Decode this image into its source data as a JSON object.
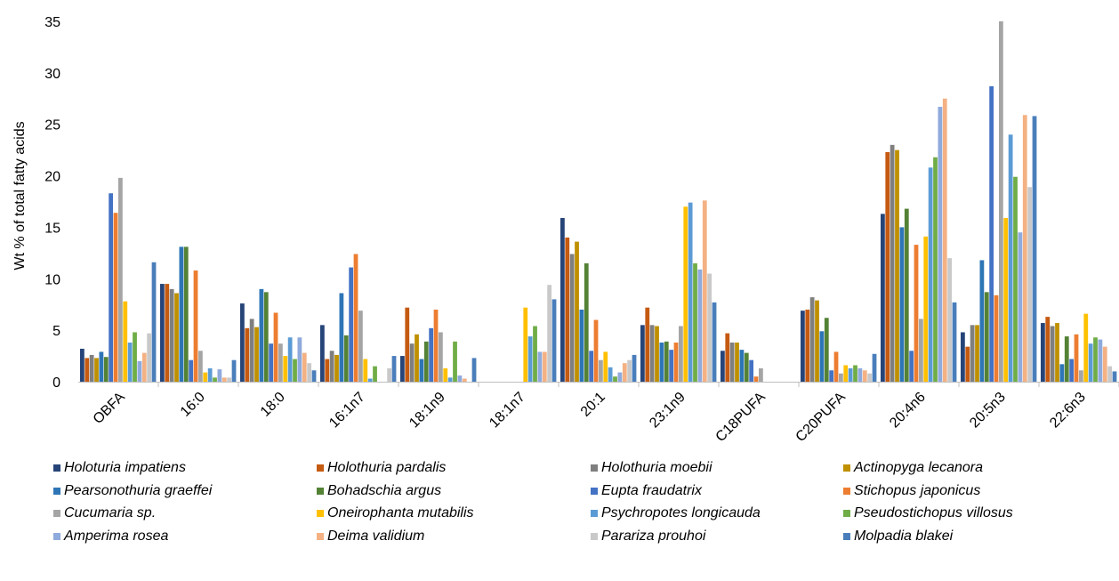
{
  "chart_data": {
    "type": "bar",
    "ylabel": "Wt % of total fatty acids",
    "ylim": [
      0,
      35
    ],
    "yticks": [
      0,
      5,
      10,
      15,
      20,
      25,
      30,
      35
    ],
    "grid": false,
    "legend_position": "bottom",
    "categories": [
      "OBFA",
      "16:0",
      "18:0",
      "16:1n7",
      "18:1n9",
      "18:1n7",
      "20:1",
      "23:1n9",
      "C18PUFA",
      "C20PUFA",
      "20:4n6",
      "20:5n3",
      "22:6n3"
    ],
    "series": [
      {
        "name": "Holoturia impatiens",
        "color": "#264478",
        "values": [
          3.2,
          9.5,
          7.6,
          5.5,
          2.5,
          0,
          15.9,
          5.5,
          3.0,
          6.9,
          16.3,
          4.8,
          5.7
        ]
      },
      {
        "name": "Holothuria pardalis",
        "color": "#C55A11",
        "values": [
          2.3,
          9.5,
          5.2,
          2.2,
          7.2,
          0,
          14.0,
          7.2,
          4.7,
          7.0,
          22.3,
          3.4,
          6.3
        ]
      },
      {
        "name": "Holothuria moebii",
        "color": "#7F7F7F",
        "values": [
          2.6,
          9.0,
          6.1,
          3.0,
          3.7,
          0,
          12.4,
          5.5,
          3.8,
          8.2,
          23.0,
          5.5,
          5.4
        ]
      },
      {
        "name": "Actinopyga lecanora",
        "color": "#BF9000",
        "values": [
          2.3,
          8.6,
          5.3,
          2.6,
          4.6,
          0,
          13.6,
          5.4,
          3.8,
          7.9,
          22.5,
          5.5,
          5.7
        ]
      },
      {
        "name": "Pearsonothuria graeffei",
        "color": "#2E75B6",
        "values": [
          2.9,
          13.1,
          9.0,
          8.6,
          2.2,
          0,
          7.0,
          3.8,
          3.1,
          4.9,
          15.0,
          11.8,
          1.7
        ]
      },
      {
        "name": "Bohadschia argus",
        "color": "#548235",
        "values": [
          2.4,
          13.1,
          8.7,
          4.5,
          3.9,
          0,
          11.5,
          3.9,
          2.8,
          6.2,
          16.8,
          8.7,
          4.4
        ]
      },
      {
        "name": "Eupta fraudatrix",
        "color": "#4472C4",
        "values": [
          18.3,
          2.1,
          3.7,
          11.1,
          5.2,
          0,
          3.0,
          3.1,
          2.1,
          1.1,
          3.0,
          28.7,
          2.2
        ]
      },
      {
        "name": "Stichopus japonicus",
        "color": "#ED7D31",
        "values": [
          16.4,
          10.8,
          6.7,
          12.4,
          7.0,
          0,
          6.0,
          3.8,
          0.5,
          2.9,
          13.3,
          8.4,
          4.6
        ]
      },
      {
        "name": "Cucumaria sp.",
        "color": "#A5A5A5",
        "values": [
          19.8,
          3.0,
          3.7,
          6.9,
          4.8,
          0,
          2.1,
          5.4,
          1.3,
          0.8,
          6.1,
          35.0,
          1.1
        ]
      },
      {
        "name": "Oneirophanta mutabilis",
        "color": "#FFC000",
        "values": [
          7.8,
          0.9,
          2.5,
          2.2,
          1.3,
          7.2,
          2.9,
          17.0,
          0,
          1.6,
          14.1,
          15.9,
          6.6
        ]
      },
      {
        "name": "Psychropotes longicauda",
        "color": "#5B9BD5",
        "values": [
          3.8,
          1.3,
          4.3,
          0.3,
          0.4,
          4.4,
          1.4,
          17.4,
          0,
          1.3,
          20.8,
          24.0,
          3.7
        ]
      },
      {
        "name": "Pseudostichopus villosus",
        "color": "#70AD47",
        "values": [
          4.8,
          0.4,
          2.2,
          1.5,
          3.9,
          5.4,
          0.5,
          11.5,
          0,
          1.6,
          21.8,
          19.9,
          4.3
        ]
      },
      {
        "name": "Amperima rosea",
        "color": "#8FAADC",
        "values": [
          2.0,
          1.2,
          4.3,
          0,
          0.6,
          2.9,
          0.9,
          10.9,
          0,
          1.3,
          26.7,
          14.5,
          4.1
        ]
      },
      {
        "name": "Deima validium",
        "color": "#F4B183",
        "values": [
          2.8,
          0.4,
          2.8,
          0,
          0.3,
          2.9,
          1.8,
          17.6,
          0,
          1.1,
          27.5,
          25.9,
          3.4
        ]
      },
      {
        "name": "Parariza prouhoi",
        "color": "#C9C9C9",
        "values": [
          4.7,
          0.4,
          1.8,
          1.3,
          0,
          9.4,
          2.1,
          10.5,
          0,
          0.8,
          12.0,
          18.9,
          1.5
        ]
      },
      {
        "name": "Molpadia blakei",
        "color": "#4A7EBB",
        "values": [
          11.6,
          2.1,
          1.1,
          2.5,
          2.3,
          8.0,
          2.6,
          7.7,
          0,
          2.7,
          7.7,
          25.8,
          1.0
        ]
      }
    ]
  }
}
